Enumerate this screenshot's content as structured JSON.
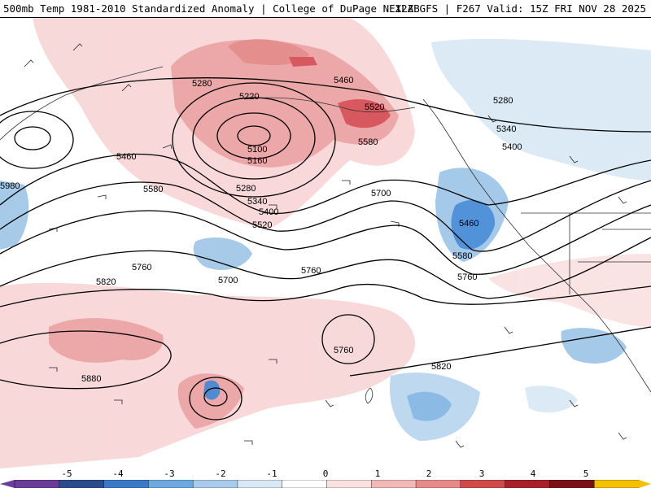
{
  "header": {
    "title_left": "500mb Temp 1981-2010 Standardized Anomaly | College of DuPage NEXLAB",
    "title_right": "12Z GFS | F267 Valid: 15Z FRI NOV 28 2025"
  },
  "map": {
    "height_contour_labels": [
      "5280",
      "5220",
      "5460",
      "5520",
      "5100",
      "5160",
      "5580",
      "5460",
      "5280",
      "5340",
      "5400",
      "5520",
      "5580",
      "5700",
      "5280",
      "5340",
      "5400",
      "5460",
      "5580",
      "5760",
      "5820",
      "5700",
      "5760",
      "5760",
      "5880",
      "5820",
      "5980"
    ],
    "colors": {
      "contour": "#000000",
      "positive_anomaly": "#e99a9a",
      "strong_positive_anomaly": "#d23c45",
      "negative_anomaly": "#9cc4e6",
      "strong_negative_anomaly": "#3f87d4",
      "coastline": "#333333"
    }
  },
  "colorbar": {
    "tick_labels": [
      "-5",
      "-4",
      "-3",
      "-2",
      "-1",
      "0",
      "1",
      "2",
      "3",
      "4",
      "5"
    ],
    "ticks": [
      -5,
      -4,
      -3,
      -2,
      -1,
      0,
      1,
      2,
      3,
      4,
      5
    ],
    "segment_colors": [
      "#6a3d9a",
      "#2b4c8c",
      "#3a78c8",
      "#6ba8e0",
      "#a8cbeb",
      "#d8e8f5",
      "#ffffff",
      "#fbe0e0",
      "#f2b7b7",
      "#e88a8a",
      "#d04a4a",
      "#a8202a",
      "#7a0f18",
      "#f5c000"
    ]
  }
}
